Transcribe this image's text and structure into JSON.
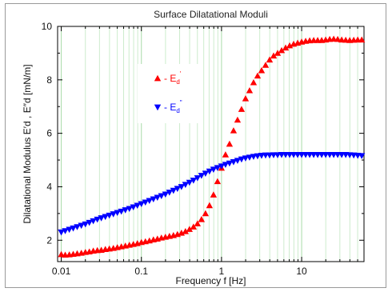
{
  "chart_data": {
    "type": "scatter",
    "title": "Surface Dilatational Moduli",
    "xlabel": "Frequency  f [Hz]",
    "ylabel": "Dilatational Modulus E′d , E″d  [mN/m]",
    "x_scale": "log",
    "xlim": [
      0.009,
      60
    ],
    "ylim": [
      1.2,
      10
    ],
    "x_ticks": [
      {
        "value": 0.01,
        "label": "0.01"
      },
      {
        "value": 0.1,
        "label": "0.1"
      },
      {
        "value": 1,
        "label": "1"
      },
      {
        "value": 10,
        "label": "10"
      }
    ],
    "y_ticks": [
      {
        "value": 2,
        "label": "2"
      },
      {
        "value": 4,
        "label": "4"
      },
      {
        "value": 6,
        "label": "6"
      },
      {
        "value": 8,
        "label": "8"
      },
      {
        "value": 10,
        "label": "10"
      }
    ],
    "grid": "vertical log grid",
    "legend_position": "upper-left",
    "series": [
      {
        "name": "E′d",
        "legend_label": "- E",
        "legend_sub": "d",
        "legend_sup": "'",
        "color": "#ff0000",
        "marker": "triangle-up",
        "x": [
          0.01,
          0.0112,
          0.0126,
          0.0141,
          0.0158,
          0.0178,
          0.02,
          0.0224,
          0.0251,
          0.0282,
          0.0316,
          0.0355,
          0.0398,
          0.0447,
          0.0501,
          0.0562,
          0.0631,
          0.0708,
          0.0794,
          0.0891,
          0.1,
          0.1122,
          0.1259,
          0.1413,
          0.1585,
          0.1778,
          0.1995,
          0.2239,
          0.2512,
          0.2818,
          0.3162,
          0.3548,
          0.3981,
          0.4467,
          0.5012,
          0.5623,
          0.631,
          0.7079,
          0.7943,
          0.8913,
          1.0,
          1.122,
          1.259,
          1.413,
          1.585,
          1.778,
          1.995,
          2.239,
          2.512,
          2.818,
          3.162,
          3.548,
          3.981,
          4.467,
          5.012,
          5.623,
          6.31,
          7.079,
          7.943,
          8.913,
          10.0,
          11.22,
          12.59,
          14.13,
          15.85,
          17.78,
          19.95,
          22.39,
          25.12,
          28.18,
          31.62,
          35.48,
          39.81,
          44.67,
          50.12,
          56.23
        ],
        "values": [
          1.47,
          1.45,
          1.46,
          1.48,
          1.5,
          1.52,
          1.55,
          1.57,
          1.6,
          1.62,
          1.63,
          1.66,
          1.68,
          1.7,
          1.73,
          1.76,
          1.79,
          1.82,
          1.85,
          1.88,
          1.92,
          1.95,
          1.98,
          2.02,
          2.05,
          2.09,
          2.12,
          2.15,
          2.18,
          2.22,
          2.27,
          2.33,
          2.41,
          2.5,
          2.62,
          2.78,
          3.0,
          3.3,
          3.7,
          4.2,
          4.7,
          5.2,
          5.6,
          6.1,
          6.5,
          6.9,
          7.3,
          7.6,
          7.9,
          8.15,
          8.35,
          8.55,
          8.75,
          8.9,
          9.0,
          9.1,
          9.2,
          9.28,
          9.34,
          9.38,
          9.42,
          9.45,
          9.47,
          9.48,
          9.48,
          9.48,
          9.5,
          9.52,
          9.53,
          9.52,
          9.5,
          9.49,
          9.48,
          9.49,
          9.5,
          9.5
        ]
      },
      {
        "name": "E″d",
        "legend_label": "- E",
        "legend_sub": "d",
        "legend_sup": "\"",
        "color": "#0000ff",
        "marker": "triangle-down",
        "x": [
          0.01,
          0.0112,
          0.0126,
          0.0141,
          0.0158,
          0.0178,
          0.02,
          0.0224,
          0.0251,
          0.0282,
          0.0316,
          0.0355,
          0.0398,
          0.0447,
          0.0501,
          0.0562,
          0.0631,
          0.0708,
          0.0794,
          0.0891,
          0.1,
          0.1122,
          0.1259,
          0.1413,
          0.1585,
          0.1778,
          0.1995,
          0.2239,
          0.2512,
          0.2818,
          0.3162,
          0.3548,
          0.3981,
          0.4467,
          0.5012,
          0.5623,
          0.631,
          0.7079,
          0.7943,
          0.8913,
          1.0,
          1.122,
          1.259,
          1.413,
          1.585,
          1.778,
          1.995,
          2.239,
          2.512,
          2.818,
          3.162,
          3.548,
          3.981,
          4.467,
          5.012,
          5.623,
          6.31,
          7.079,
          7.943,
          8.913,
          10.0,
          11.22,
          12.59,
          14.13,
          15.85,
          17.78,
          19.95,
          22.39,
          25.12,
          28.18,
          31.62,
          35.48,
          39.81,
          44.67,
          50.12,
          56.23
        ],
        "values": [
          2.3,
          2.35,
          2.4,
          2.45,
          2.5,
          2.55,
          2.6,
          2.66,
          2.72,
          2.78,
          2.83,
          2.88,
          2.93,
          2.98,
          3.03,
          3.08,
          3.13,
          3.18,
          3.24,
          3.3,
          3.36,
          3.42,
          3.48,
          3.54,
          3.6,
          3.66,
          3.72,
          3.79,
          3.86,
          3.93,
          4.0,
          4.08,
          4.16,
          4.24,
          4.33,
          4.42,
          4.5,
          4.58,
          4.65,
          4.71,
          4.77,
          4.83,
          4.88,
          4.93,
          4.98,
          5.03,
          5.07,
          5.1,
          5.13,
          5.15,
          5.17,
          5.18,
          5.18,
          5.19,
          5.19,
          5.2,
          5.2,
          5.2,
          5.2,
          5.2,
          5.2,
          5.2,
          5.2,
          5.2,
          5.2,
          5.2,
          5.2,
          5.2,
          5.2,
          5.2,
          5.2,
          5.2,
          5.19,
          5.18,
          5.17,
          5.16
        ]
      }
    ]
  }
}
